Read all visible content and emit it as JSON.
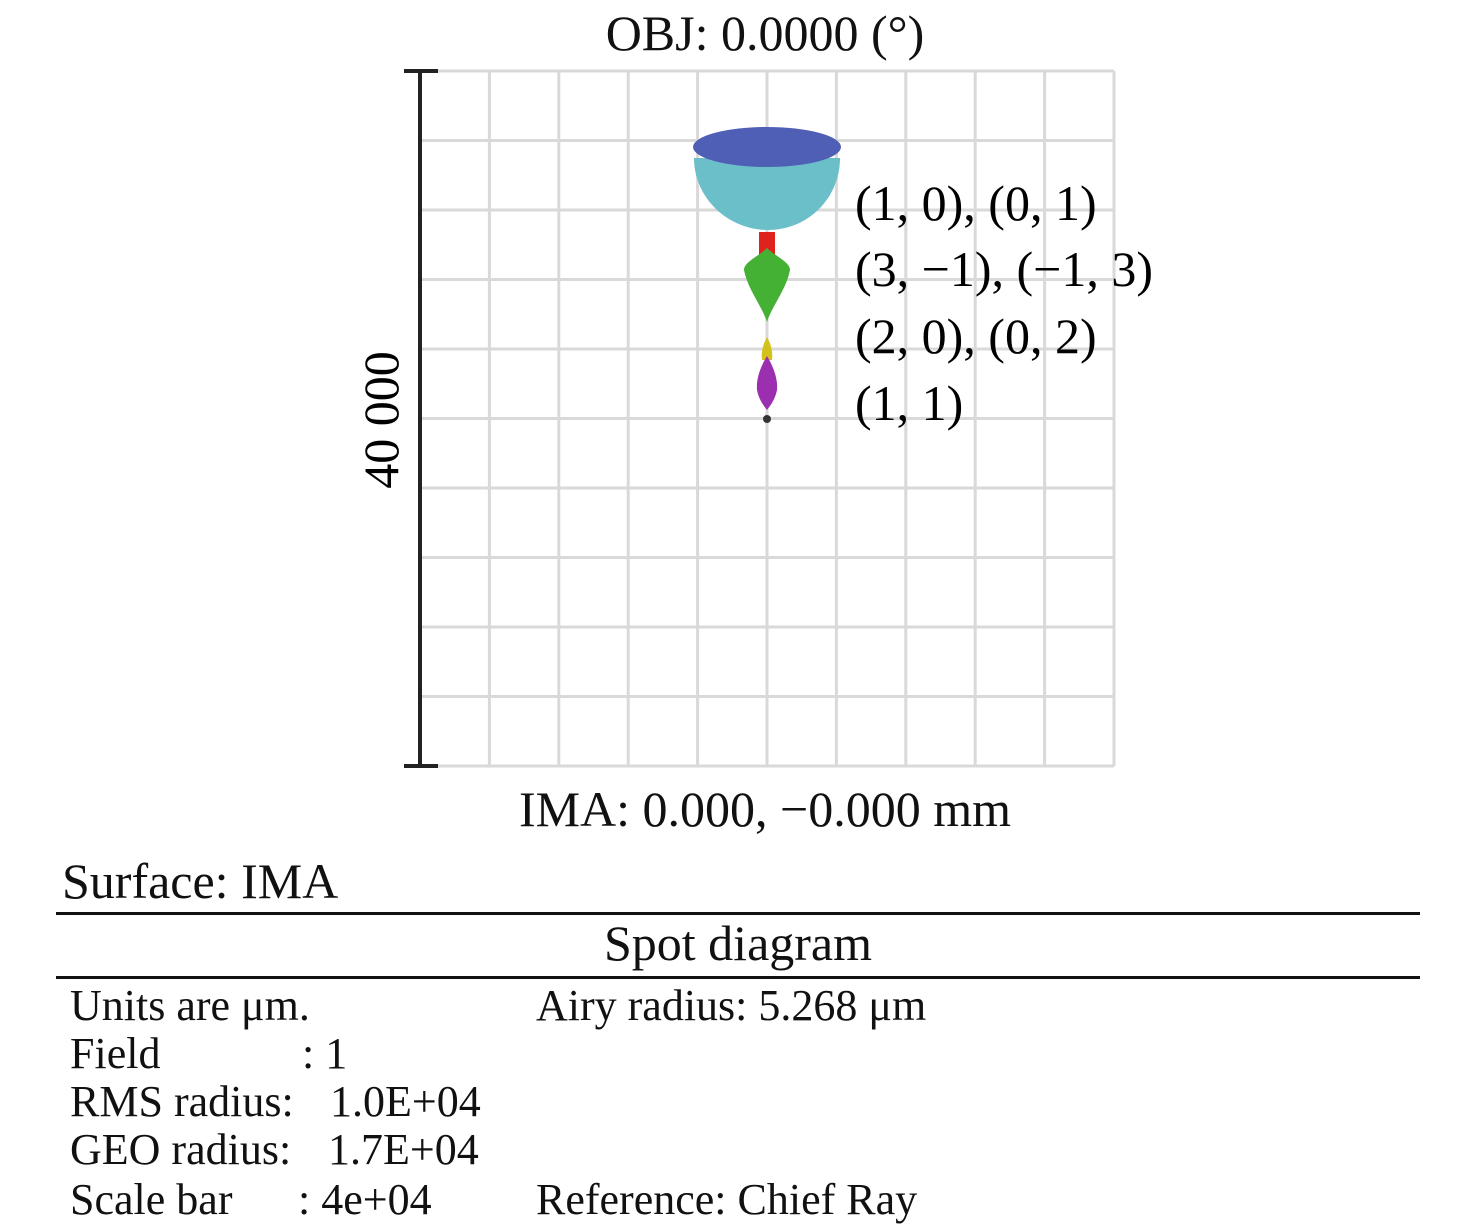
{
  "title": "OBJ: 0.0000 (°)",
  "image_label": "IMA: 0.000, −0.000 mm",
  "scale_bar_label": "40 000",
  "spots": [
    {
      "label": "(1, 0), (0, 1)",
      "color": "#6bbfc9"
    },
    {
      "label": "(3, −1), (−1, 3)",
      "color": "#44b034"
    },
    {
      "label": "(2, 0), (0, 2)",
      "color": "#d4c21c"
    },
    {
      "label": "(1, 1)",
      "color": "#9b2fb0"
    }
  ],
  "colors": {
    "blue": "#4f5fb5",
    "cyan": "#6bbfc9",
    "red": "#e0221e",
    "green": "#44b034",
    "yellow": "#d4c21c",
    "purple": "#9b2fb0"
  },
  "surface": "Surface: IMA",
  "table_title": "Spot diagram",
  "info": {
    "units": "Units are μm.",
    "field_label": "Field",
    "field_value": ": 1",
    "rms_label": "RMS radius:",
    "rms_value": "1.0E+04",
    "geo_label": "GEO radius:",
    "geo_value": "1.7E+04",
    "scale_label": "Scale bar",
    "scale_value": ": 4e+04",
    "airy": "Airy radius: 5.268 μm",
    "reference": "Reference: Chief Ray"
  }
}
